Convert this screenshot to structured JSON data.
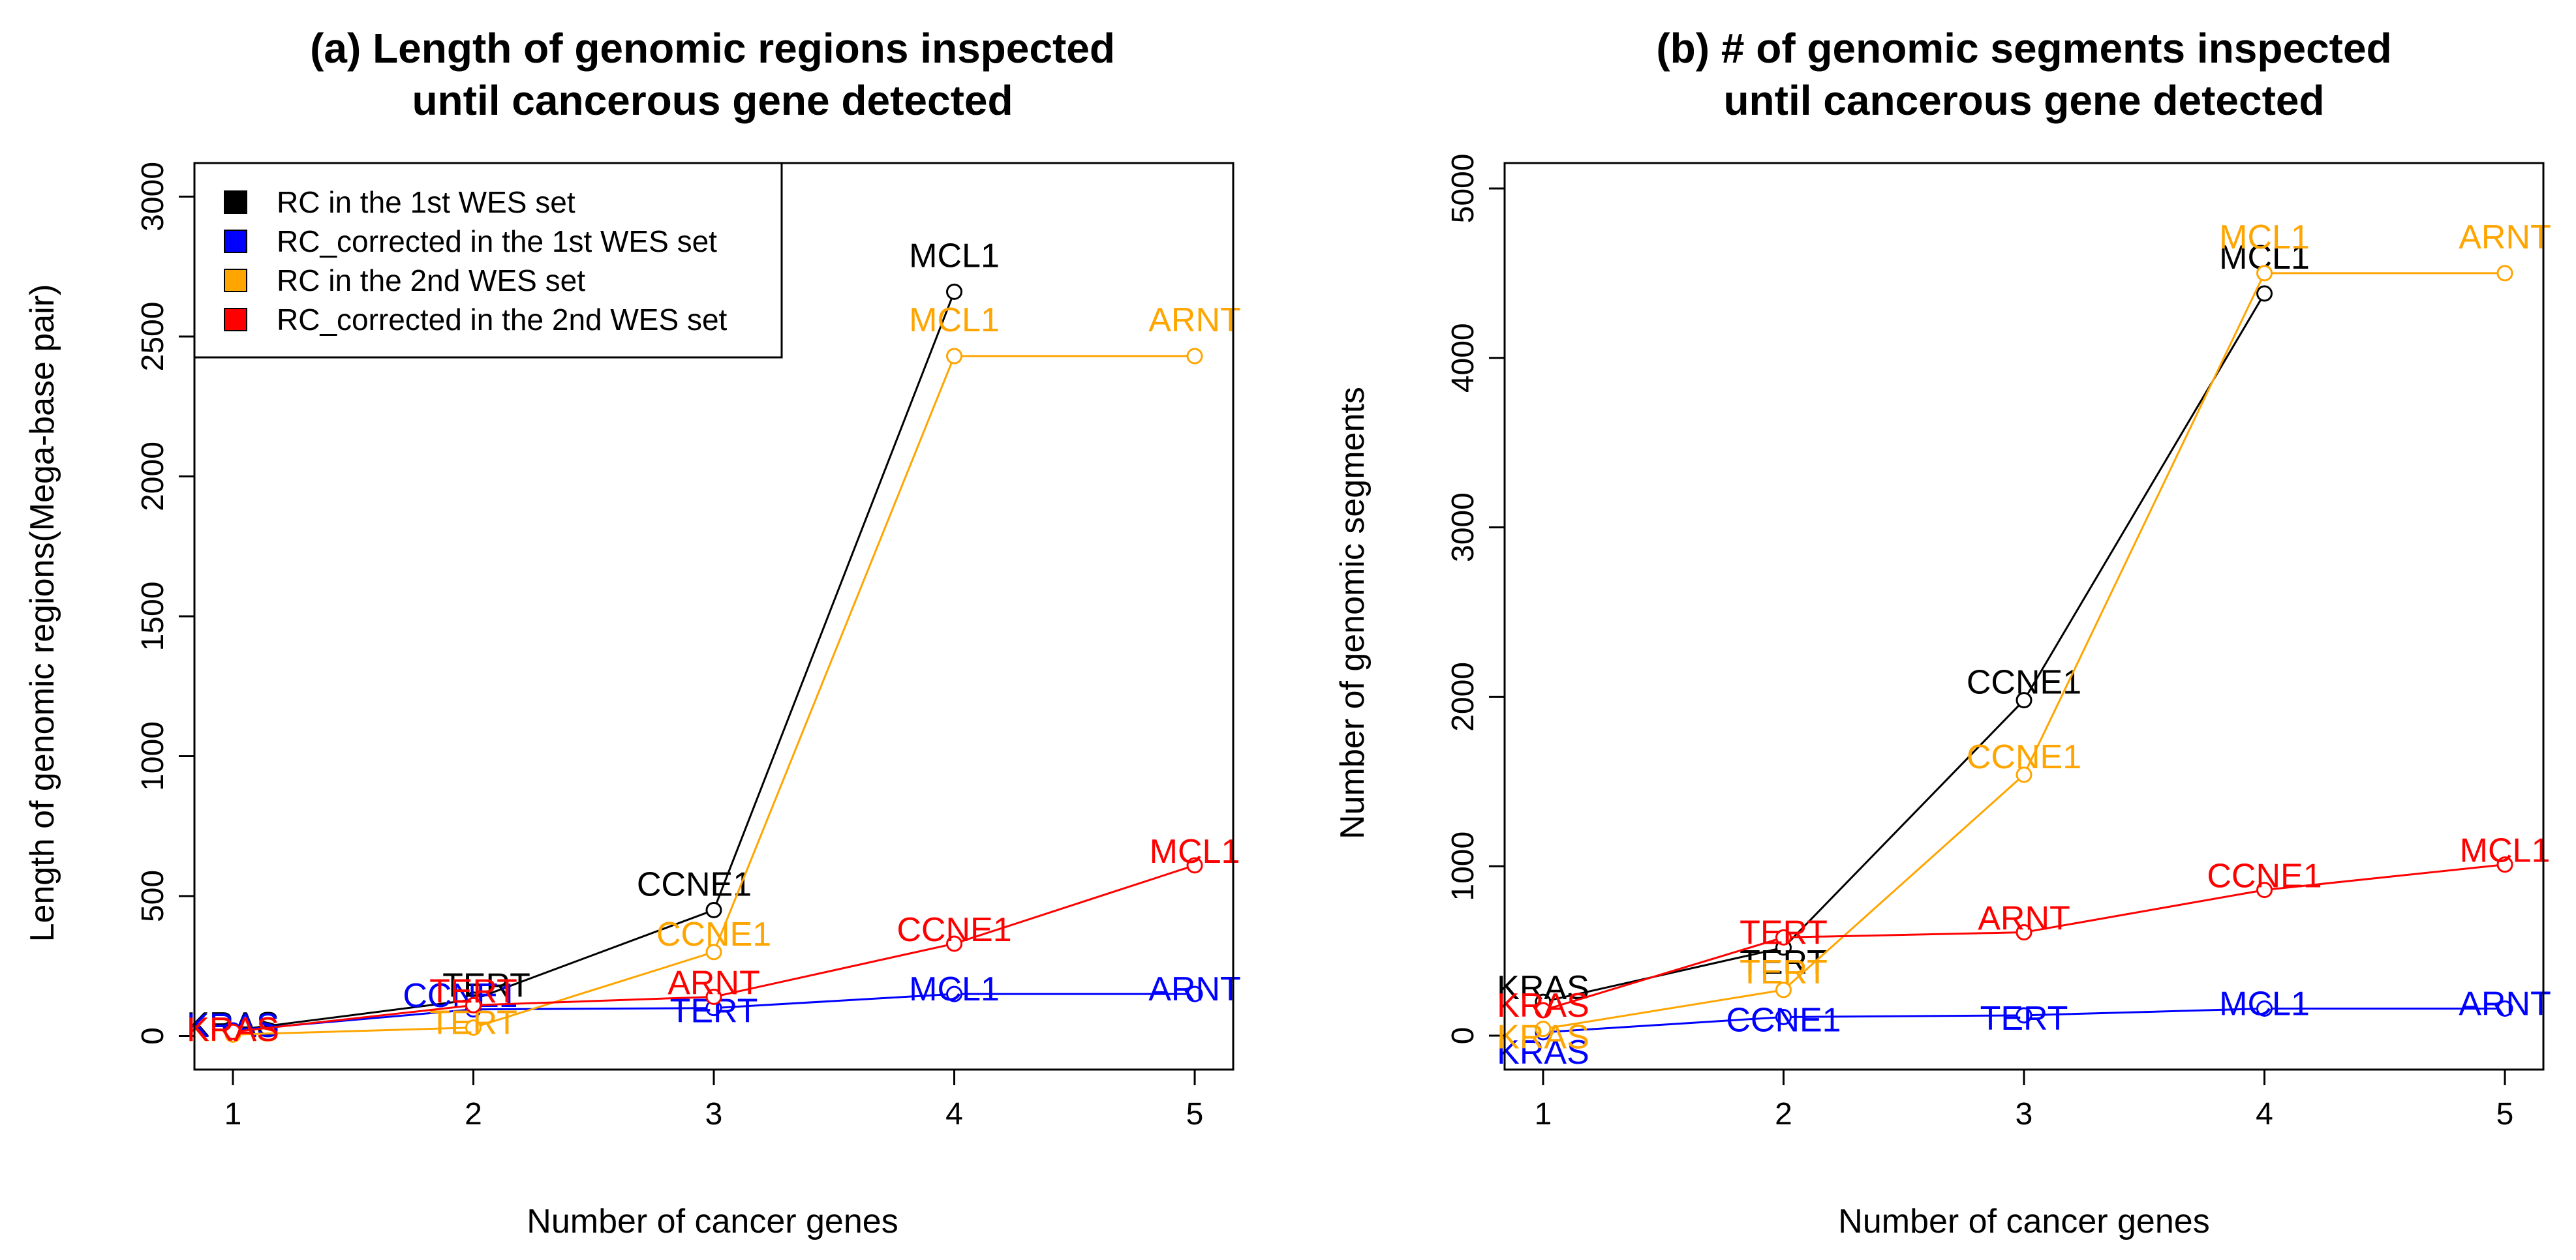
{
  "figure": {
    "background": "#ffffff"
  },
  "chart_data": [
    {
      "type": "line",
      "panel": "a",
      "title_lines": [
        "(a) Length of genomic regions inspected",
        "until cancerous gene detected"
      ],
      "xlabel": "Number of cancer genes",
      "ylabel": "Length of genomic regions(Mega-base pair)",
      "xlim": [
        0.84,
        5.16
      ],
      "ylim": [
        -120,
        3120
      ],
      "xticks": [
        1,
        2,
        3,
        4,
        5
      ],
      "yticks": [
        0,
        500,
        1000,
        1500,
        2000,
        2500,
        3000
      ],
      "x": [
        1,
        2,
        3,
        4,
        5
      ],
      "series": [
        {
          "name": "RC in the 1st WES set",
          "color": "#000000",
          "x": [
            1,
            2,
            3,
            4
          ],
          "values": [
            20,
            130,
            450,
            2660
          ],
          "labels": [
            "KRAS",
            "TERT",
            "CCNE1",
            "MCL1"
          ]
        },
        {
          "name": "RC_corrected in the 1st WES set",
          "color": "#0000ff",
          "x": [
            1,
            2,
            3,
            4,
            5
          ],
          "values": [
            20,
            95,
            100,
            150,
            150
          ],
          "labels": [
            "KRAS",
            "CCNE1",
            "TERT",
            "MCL1",
            "ARNT"
          ]
        },
        {
          "name": "RC in the 2nd WES set",
          "color": "#ffa500",
          "x": [
            1,
            2,
            3,
            4,
            5
          ],
          "values": [
            5,
            30,
            300,
            2430,
            2430
          ],
          "labels": [
            "KRAS",
            "TERT",
            "CCNE1",
            "MCL1",
            "ARNT"
          ]
        },
        {
          "name": "RC_corrected in the 2nd WES set",
          "color": "#ff0000",
          "x": [
            1,
            2,
            3,
            4,
            5
          ],
          "values": [
            15,
            110,
            140,
            330,
            610
          ],
          "labels": [
            "KRAS",
            "TERT",
            "ARNT",
            "CCNE1",
            "MCL1"
          ]
        }
      ],
      "legend": {
        "position": "top-left",
        "entries": [
          {
            "label": "RC in the 1st WES set",
            "color": "#000000"
          },
          {
            "label": "RC_corrected in the 1st WES set",
            "color": "#0000ff"
          },
          {
            "label": "RC in the 2nd WES set",
            "color": "#ffa500"
          },
          {
            "label": "RC_corrected in the 2nd WES set",
            "color": "#ff0000"
          }
        ]
      }
    },
    {
      "type": "line",
      "panel": "b",
      "title_lines": [
        "(b) # of genomic segments inspected",
        "until cancerous gene detected"
      ],
      "xlabel": "Number of cancer genes",
      "ylabel": "Number of genomic segments",
      "xlim": [
        0.84,
        5.16
      ],
      "ylim": [
        -200,
        5150
      ],
      "xticks": [
        1,
        2,
        3,
        4,
        5
      ],
      "yticks": [
        0,
        1000,
        2000,
        3000,
        4000,
        5000
      ],
      "x": [
        1,
        2,
        3,
        4,
        5
      ],
      "series": [
        {
          "name": "RC in the 1st WES set",
          "color": "#000000",
          "x": [
            1,
            2,
            3,
            4
          ],
          "values": [
            200,
            520,
            1980,
            4380
          ],
          "labels": [
            "KRAS",
            "TERT",
            "CCNE1",
            "MCL1"
          ]
        },
        {
          "name": "RC_corrected in the 1st WES set",
          "color": "#0000ff",
          "x": [
            1,
            2,
            3,
            4,
            5
          ],
          "values": [
            20,
            110,
            120,
            160,
            160
          ],
          "labels": [
            "KRAS",
            "CCNE1",
            "TERT",
            "MCL1",
            "ARNT"
          ]
        },
        {
          "name": "RC in the 2nd WES set",
          "color": "#ffa500",
          "x": [
            1,
            2,
            3,
            4,
            5
          ],
          "values": [
            40,
            270,
            1540,
            4500,
            4500
          ],
          "labels": [
            "KRAS",
            "TERT",
            "CCNE1",
            "MCL1",
            "ARNT"
          ]
        },
        {
          "name": "RC_corrected in the 2nd WES set",
          "color": "#ff0000",
          "x": [
            1,
            2,
            3,
            4,
            5
          ],
          "values": [
            150,
            580,
            610,
            860,
            1010
          ],
          "labels": [
            "KRAS",
            "TERT",
            "ARNT",
            "CCNE1",
            "MCL1"
          ]
        }
      ]
    }
  ]
}
